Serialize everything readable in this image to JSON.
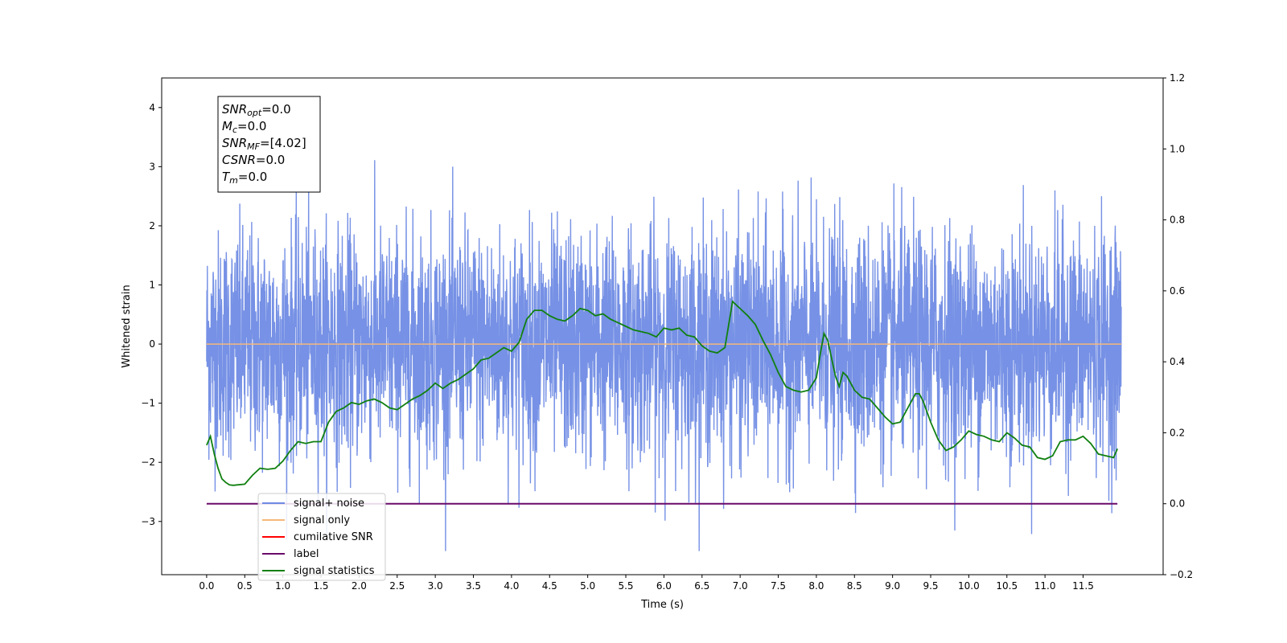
{
  "chart_data": {
    "type": "line",
    "xlabel": "Time (s)",
    "ylabel": "Whitened strain",
    "xlim": [
      -0.59,
      12.55
    ],
    "ylim": [
      -3.9,
      4.5
    ],
    "y2lim": [
      -0.2,
      1.2
    ],
    "grid": false,
    "legend_position": "lower-left",
    "xticks": [
      "0.0",
      "0.5",
      "1.0",
      "1.5",
      "2.0",
      "2.5",
      "3.0",
      "3.5",
      "4.0",
      "4.5",
      "5.0",
      "5.5",
      "6.0",
      "6.5",
      "7.0",
      "7.5",
      "8.0",
      "8.5",
      "9.0",
      "9.5",
      "10.0",
      "10.5",
      "11.0",
      "11.5"
    ],
    "yticks": [
      "−3",
      "−2",
      "−1",
      "0",
      "1",
      "2",
      "3",
      "4"
    ],
    "y2ticks": [
      "−0.2",
      "0.0",
      "0.2",
      "0.4",
      "0.6",
      "0.8",
      "1.0",
      "1.2"
    ],
    "series": [
      {
        "name": "signal+ noise",
        "axis": "left",
        "color": "#6f8be4",
        "style": "noise",
        "x_range": [
          0.0,
          12.0
        ],
        "amplitude_std": 1.0,
        "range_observed": [
          -3.5,
          4.1
        ]
      },
      {
        "name": "signal only",
        "axis": "left",
        "color": "#f5b87a",
        "x": [
          0.0,
          12.0
        ],
        "y": [
          0.0,
          0.0
        ]
      },
      {
        "name": "cumilative SNR",
        "axis": "left",
        "color": "#ff0000",
        "x": [],
        "y": []
      },
      {
        "name": "label",
        "axis": "right",
        "color": "#6a0a6a",
        "x": [
          0.0,
          11.95
        ],
        "y": [
          0.0,
          0.0
        ]
      },
      {
        "name": "signal statistics",
        "axis": "right",
        "color": "#108010",
        "x": [
          0.0,
          0.05,
          0.1,
          0.15,
          0.2,
          0.25,
          0.3,
          0.35,
          0.4,
          0.5,
          0.6,
          0.7,
          0.8,
          0.9,
          1.0,
          1.1,
          1.2,
          1.3,
          1.4,
          1.5,
          1.6,
          1.7,
          1.8,
          1.9,
          2.0,
          2.1,
          2.2,
          2.3,
          2.4,
          2.5,
          2.6,
          2.7,
          2.8,
          2.9,
          3.0,
          3.1,
          3.2,
          3.3,
          3.4,
          3.5,
          3.6,
          3.7,
          3.8,
          3.9,
          4.0,
          4.1,
          4.2,
          4.3,
          4.4,
          4.5,
          4.6,
          4.7,
          4.8,
          4.9,
          5.0,
          5.1,
          5.2,
          5.3,
          5.4,
          5.5,
          5.6,
          5.7,
          5.8,
          5.9,
          6.0,
          6.1,
          6.2,
          6.3,
          6.4,
          6.5,
          6.6,
          6.7,
          6.8,
          6.9,
          6.95,
          7.0,
          7.1,
          7.2,
          7.3,
          7.4,
          7.5,
          7.6,
          7.7,
          7.8,
          7.9,
          8.0,
          8.05,
          8.1,
          8.15,
          8.2,
          8.25,
          8.3,
          8.35,
          8.4,
          8.5,
          8.6,
          8.7,
          8.8,
          8.9,
          9.0,
          9.1,
          9.2,
          9.3,
          9.35,
          9.4,
          9.5,
          9.6,
          9.7,
          9.8,
          9.9,
          10.0,
          10.1,
          10.2,
          10.3,
          10.4,
          10.5,
          10.6,
          10.7,
          10.8,
          10.9,
          11.0,
          11.1,
          11.2,
          11.3,
          11.4,
          11.5,
          11.6,
          11.7,
          11.8,
          11.9,
          11.95
        ],
        "y": [
          0.165,
          0.19,
          0.14,
          0.1,
          0.07,
          0.06,
          0.053,
          0.052,
          0.053,
          0.055,
          0.08,
          0.1,
          0.097,
          0.1,
          0.12,
          0.15,
          0.175,
          0.17,
          0.175,
          0.175,
          0.23,
          0.26,
          0.27,
          0.285,
          0.28,
          0.29,
          0.295,
          0.285,
          0.27,
          0.265,
          0.28,
          0.295,
          0.305,
          0.32,
          0.34,
          0.325,
          0.34,
          0.35,
          0.365,
          0.38,
          0.405,
          0.41,
          0.425,
          0.44,
          0.43,
          0.455,
          0.52,
          0.545,
          0.545,
          0.53,
          0.52,
          0.515,
          0.53,
          0.55,
          0.545,
          0.53,
          0.535,
          0.52,
          0.51,
          0.5,
          0.49,
          0.485,
          0.48,
          0.47,
          0.495,
          0.49,
          0.495,
          0.475,
          0.47,
          0.445,
          0.43,
          0.425,
          0.44,
          0.57,
          0.56,
          0.55,
          0.53,
          0.505,
          0.46,
          0.42,
          0.37,
          0.33,
          0.32,
          0.315,
          0.32,
          0.355,
          0.42,
          0.48,
          0.46,
          0.41,
          0.36,
          0.33,
          0.37,
          0.36,
          0.32,
          0.3,
          0.295,
          0.27,
          0.245,
          0.225,
          0.23,
          0.27,
          0.31,
          0.31,
          0.29,
          0.23,
          0.18,
          0.15,
          0.16,
          0.18,
          0.205,
          0.195,
          0.19,
          0.18,
          0.175,
          0.2,
          0.185,
          0.165,
          0.16,
          0.13,
          0.125,
          0.135,
          0.175,
          0.18,
          0.18,
          0.19,
          0.17,
          0.14,
          0.135,
          0.13,
          0.155
        ]
      }
    ],
    "annotation_box": {
      "lines": [
        {
          "base": "SNR",
          "sub": "opt",
          "value": "=0.0"
        },
        {
          "base": "M",
          "sub": "c",
          "value": "=0.0"
        },
        {
          "base": "SNR",
          "sub": "MF",
          "value": "=[4.02]"
        },
        {
          "base": "CSNR",
          "sub": "",
          "value": "=0.0"
        },
        {
          "base": "T",
          "sub": "m",
          "value": "=0.0"
        }
      ]
    }
  }
}
